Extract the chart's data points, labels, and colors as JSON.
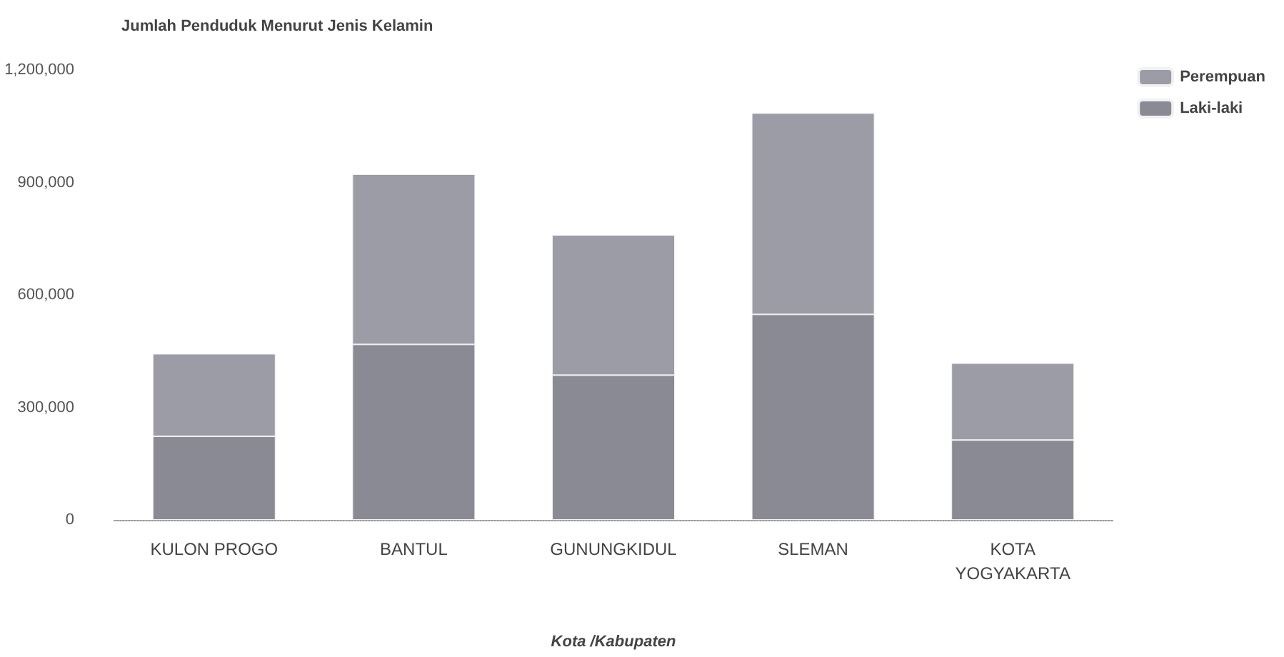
{
  "chart_data": {
    "type": "bar",
    "title": "Jumlah Penduduk Menurut Jenis Kelamin",
    "xlabel": "Kota /Kabupaten",
    "categories": [
      "KULON PROGO",
      "BANTUL",
      "GUNUNGKIDUL",
      "SLEMAN",
      "KOTA\nYOGYAKARTA"
    ],
    "stacked": true,
    "series": [
      {
        "name": "Laki-laki",
        "color": "#8a8a94",
        "values": [
          223000,
          468000,
          386000,
          548000,
          213000
        ]
      },
      {
        "name": "Perempuan",
        "color": "#9c9ca6",
        "values": [
          220000,
          454000,
          374000,
          537000,
          205000
        ]
      }
    ],
    "ylim": [
      0,
      1200000
    ],
    "yticks": [
      {
        "value": 0,
        "label": "0"
      },
      {
        "value": 300000,
        "label": "300,000"
      },
      {
        "value": 600000,
        "label": "600,000"
      },
      {
        "value": 900000,
        "label": "900,000"
      },
      {
        "value": 1200000,
        "label": "1,200,000"
      }
    ],
    "grid": false,
    "legend": "top right"
  }
}
